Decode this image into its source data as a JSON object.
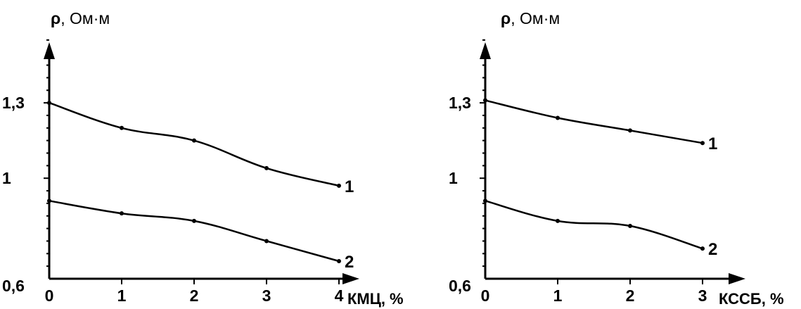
{
  "chart_data": [
    {
      "type": "line",
      "title": "",
      "ylabel_symbol": "ρ",
      "ylabel_unit": ", Ом·м",
      "xlabel": "КМЦ, %",
      "x": [
        0,
        1,
        2,
        3,
        4
      ],
      "xlim": [
        0,
        4
      ],
      "ylim": [
        0.6,
        1.6
      ],
      "x_ticks": [
        "0",
        "1",
        "2",
        "3",
        "4"
      ],
      "y_ticks": [
        {
          "value": 1.3,
          "label": "1,3"
        },
        {
          "value": 1.0,
          "label": "1"
        },
        {
          "value": 0.6,
          "label": "0,6"
        }
      ],
      "grid": false,
      "series": [
        {
          "name": "1",
          "values": [
            1.3,
            1.2,
            1.15,
            1.04,
            0.97
          ]
        },
        {
          "name": "2",
          "values": [
            0.91,
            0.86,
            0.83,
            0.75,
            0.67
          ]
        }
      ]
    },
    {
      "type": "line",
      "title": "",
      "ylabel_symbol": "ρ",
      "ylabel_unit": ", Ом·м",
      "xlabel": "КССБ, %",
      "x": [
        0,
        1,
        2,
        3
      ],
      "xlim": [
        0,
        3
      ],
      "ylim": [
        0.6,
        1.6
      ],
      "x_ticks": [
        "0",
        "1",
        "2",
        "3"
      ],
      "y_ticks": [
        {
          "value": 1.3,
          "label": "1,3"
        },
        {
          "value": 1.0,
          "label": "1"
        },
        {
          "value": 0.6,
          "label": "0,6"
        }
      ],
      "grid": false,
      "series": [
        {
          "name": "1",
          "values": [
            1.31,
            1.24,
            1.19,
            1.14
          ]
        },
        {
          "name": "2",
          "values": [
            0.91,
            0.83,
            0.81,
            0.72
          ]
        }
      ]
    }
  ]
}
